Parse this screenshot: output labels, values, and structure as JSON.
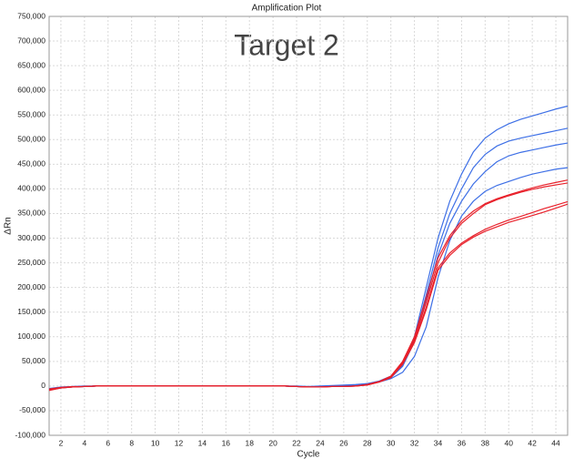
{
  "chart_data": {
    "type": "line",
    "title": "Amplification Plot",
    "annotation": "Target 2",
    "xlabel": "Cycle",
    "ylabel": "ΔRn",
    "x": [
      1,
      2,
      3,
      4,
      5,
      6,
      7,
      8,
      9,
      10,
      11,
      12,
      13,
      14,
      15,
      16,
      17,
      18,
      19,
      20,
      21,
      22,
      23,
      24,
      25,
      26,
      27,
      28,
      29,
      30,
      31,
      32,
      33,
      34,
      35,
      36,
      37,
      38,
      39,
      40,
      41,
      42,
      43,
      44,
      45
    ],
    "xlim": [
      1,
      45
    ],
    "xticks": [
      2,
      4,
      6,
      8,
      10,
      12,
      14,
      16,
      18,
      20,
      22,
      24,
      26,
      28,
      30,
      32,
      34,
      36,
      38,
      40,
      42,
      44
    ],
    "ylim": [
      -100000,
      750000
    ],
    "yticks": [
      {
        "value": -100000,
        "label": "-100,000"
      },
      {
        "value": -50000,
        "label": "-50,000"
      },
      0,
      {
        "value": 50000,
        "label": "50,000"
      },
      {
        "value": 100000,
        "label": "100,000"
      },
      {
        "value": 150000,
        "label": "150,000"
      },
      {
        "value": 200000,
        "label": "200,000"
      },
      {
        "value": 250000,
        "label": "250,000"
      },
      {
        "value": 300000,
        "label": "300,000"
      },
      {
        "value": 350000,
        "label": "350,000"
      },
      {
        "value": 400000,
        "label": "400,000"
      },
      {
        "value": 450000,
        "label": "450,000"
      },
      {
        "value": 500000,
        "label": "500,000"
      },
      {
        "value": 550000,
        "label": "550,000"
      },
      {
        "value": 600000,
        "label": "600,000"
      },
      {
        "value": 650000,
        "label": "650,000"
      },
      {
        "value": 700000,
        "label": "700,000"
      },
      {
        "value": 750000,
        "label": "750,000"
      }
    ],
    "grid": true,
    "series": [
      {
        "color": "#3d6fe6",
        "values": [
          -8000,
          -4000,
          -2000,
          -1000,
          0,
          0,
          0,
          0,
          0,
          0,
          0,
          0,
          0,
          0,
          0,
          0,
          0,
          0,
          0,
          0,
          0,
          -1000,
          -2000,
          -1000,
          0,
          1000,
          2000,
          5000,
          10000,
          20000,
          45000,
          100000,
          200000,
          300000,
          375000,
          430000,
          475000,
          503000,
          520000,
          532000,
          541000,
          548000,
          555000,
          562000,
          568000
        ]
      },
      {
        "color": "#3d6fe6",
        "values": [
          -7000,
          -3000,
          -2000,
          -1000,
          0,
          0,
          0,
          0,
          0,
          0,
          0,
          0,
          0,
          0,
          0,
          0,
          0,
          0,
          0,
          0,
          0,
          -1000,
          -2000,
          -1000,
          0,
          1000,
          2000,
          4000,
          9000,
          18000,
          42000,
          95000,
          185000,
          280000,
          350000,
          400000,
          443000,
          470000,
          487000,
          497000,
          503000,
          508000,
          513000,
          518000,
          523000
        ]
      },
      {
        "color": "#3d6fe6",
        "values": [
          -6000,
          -3000,
          -1000,
          -1000,
          0,
          0,
          0,
          0,
          0,
          0,
          0,
          0,
          0,
          0,
          0,
          0,
          0,
          0,
          0,
          0,
          0,
          -1000,
          -1000,
          -1000,
          0,
          1000,
          2000,
          4000,
          9000,
          17000,
          40000,
          90000,
          175000,
          265000,
          330000,
          375000,
          410000,
          435000,
          455000,
          467000,
          474000,
          479000,
          484000,
          489000,
          493000
        ]
      },
      {
        "color": "#3d6fe6",
        "values": [
          -5000,
          -2000,
          -1000,
          0,
          0,
          0,
          0,
          0,
          0,
          0,
          0,
          0,
          0,
          0,
          0,
          0,
          0,
          0,
          0,
          0,
          0,
          0,
          -1000,
          0,
          1000,
          2000,
          3000,
          5000,
          8000,
          15000,
          28000,
          60000,
          120000,
          220000,
          295000,
          345000,
          375000,
          395000,
          407000,
          415000,
          423000,
          430000,
          435000,
          440000,
          443000
        ]
      },
      {
        "color": "#e8202a",
        "values": [
          -9000,
          -4000,
          -2000,
          -1000,
          0,
          0,
          0,
          0,
          0,
          0,
          0,
          0,
          0,
          0,
          0,
          0,
          0,
          0,
          0,
          0,
          0,
          -1000,
          -2000,
          -2000,
          -1000,
          -1000,
          0,
          3000,
          9000,
          20000,
          50000,
          100000,
          180000,
          260000,
          305000,
          335000,
          355000,
          370000,
          380000,
          388000,
          395000,
          402000,
          408000,
          413000,
          418000
        ]
      },
      {
        "color": "#e8202a",
        "values": [
          -8000,
          -4000,
          -2000,
          -1000,
          0,
          0,
          0,
          0,
          0,
          0,
          0,
          0,
          0,
          0,
          0,
          0,
          0,
          0,
          0,
          0,
          0,
          -1000,
          -2000,
          -2000,
          -1000,
          -1000,
          0,
          3000,
          9000,
          19000,
          48000,
          95000,
          170000,
          250000,
          300000,
          330000,
          350000,
          368000,
          378000,
          386000,
          393000,
          399000,
          404000,
          408000,
          412000
        ]
      },
      {
        "color": "#e8202a",
        "values": [
          -7000,
          -3000,
          -2000,
          -1000,
          0,
          0,
          0,
          0,
          0,
          0,
          0,
          0,
          0,
          0,
          0,
          0,
          0,
          0,
          0,
          0,
          0,
          -1000,
          -2000,
          -2000,
          -1000,
          -1000,
          0,
          2000,
          8000,
          18000,
          45000,
          90000,
          160000,
          240000,
          270000,
          290000,
          305000,
          318000,
          328000,
          337000,
          344000,
          352000,
          360000,
          367000,
          374000
        ]
      },
      {
        "color": "#e8202a",
        "values": [
          -6000,
          -3000,
          -1000,
          -1000,
          0,
          0,
          0,
          0,
          0,
          0,
          0,
          0,
          0,
          0,
          0,
          0,
          0,
          0,
          0,
          0,
          0,
          -1000,
          -2000,
          -2000,
          -1000,
          -1000,
          0,
          2000,
          8000,
          17000,
          44000,
          88000,
          155000,
          235000,
          265000,
          287000,
          302000,
          314000,
          323000,
          332000,
          339000,
          346000,
          353000,
          361000,
          369000
        ]
      }
    ]
  }
}
